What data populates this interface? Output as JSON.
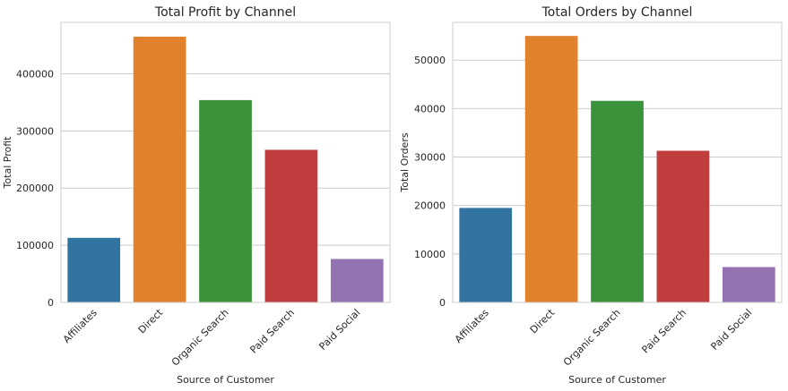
{
  "chart_data": [
    {
      "type": "bar",
      "title": "Total Profit by Channel",
      "xlabel": "Source of Customer",
      "ylabel": "Total Profit",
      "categories": [
        "Affiliates",
        "Direct",
        "Organic Search",
        "Paid Search",
        "Paid Social"
      ],
      "values": [
        113000,
        465000,
        354000,
        267000,
        76000
      ],
      "colors": [
        "#3274a1",
        "#e1812c",
        "#3a923a",
        "#c03d3e",
        "#9372b2"
      ],
      "ylim": [
        0,
        490000
      ],
      "yticks": [
        0,
        100000,
        200000,
        300000,
        400000
      ],
      "grid": true
    },
    {
      "type": "bar",
      "title": "Total Orders by Channel",
      "xlabel": "Source of Customer",
      "ylabel": "Total Orders",
      "categories": [
        "Affiliates",
        "Direct",
        "Organic Search",
        "Paid Search",
        "Paid Social"
      ],
      "values": [
        19500,
        55000,
        41600,
        31300,
        7300
      ],
      "colors": [
        "#3274a1",
        "#e1812c",
        "#3a923a",
        "#c03d3e",
        "#9372b2"
      ],
      "ylim": [
        0,
        57800
      ],
      "yticks": [
        0,
        10000,
        20000,
        30000,
        40000,
        50000
      ],
      "grid": true
    }
  ]
}
